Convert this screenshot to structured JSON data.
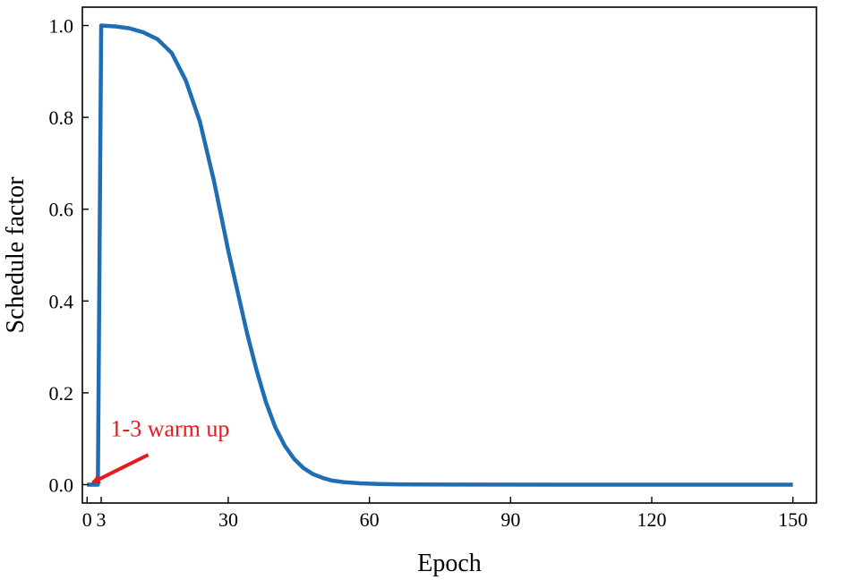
{
  "chart_data": {
    "type": "line",
    "title": "",
    "xlabel": "Epoch",
    "ylabel": "Schedule factor",
    "xlim": [
      -1,
      155
    ],
    "ylim": [
      -0.04,
      1.04
    ],
    "xticks": [
      0,
      3,
      30,
      60,
      90,
      120,
      150
    ],
    "xtick_labels": [
      "0",
      "3",
      "30",
      "60",
      "90",
      "120",
      "150"
    ],
    "yticks": [
      0.0,
      0.2,
      0.4,
      0.6,
      0.8,
      1.0
    ],
    "ytick_labels": [
      "0.0",
      "0.2",
      "0.4",
      "0.6",
      "0.8",
      "1.0"
    ],
    "grid": false,
    "series": [
      {
        "color": "#1f6db3",
        "x": [
          0,
          1,
          2,
          2.3,
          3,
          6,
          9,
          12,
          15,
          18,
          21,
          24,
          27,
          30,
          32,
          34,
          36,
          38,
          40,
          42,
          44,
          46,
          48,
          50,
          52,
          55,
          58,
          62,
          66,
          70,
          80,
          100,
          120,
          150
        ],
        "y": [
          0.0,
          0.0,
          0.0,
          0.0,
          1.0,
          0.998,
          0.994,
          0.985,
          0.97,
          0.94,
          0.88,
          0.79,
          0.66,
          0.51,
          0.42,
          0.33,
          0.25,
          0.18,
          0.125,
          0.085,
          0.056,
          0.036,
          0.023,
          0.015,
          0.009,
          0.005,
          0.003,
          0.0015,
          0.0008,
          0.0004,
          0.0001,
          0.0,
          0.0,
          0.0
        ]
      }
    ],
    "annotations": [
      {
        "text": "1-3 warm up",
        "color": "#e8191b",
        "text_x": 5,
        "text_y": 0.105,
        "arrow_to_x": 1.2,
        "arrow_to_y": 0.005,
        "arrow_from_x": 13,
        "arrow_from_y": 0.065
      }
    ]
  }
}
